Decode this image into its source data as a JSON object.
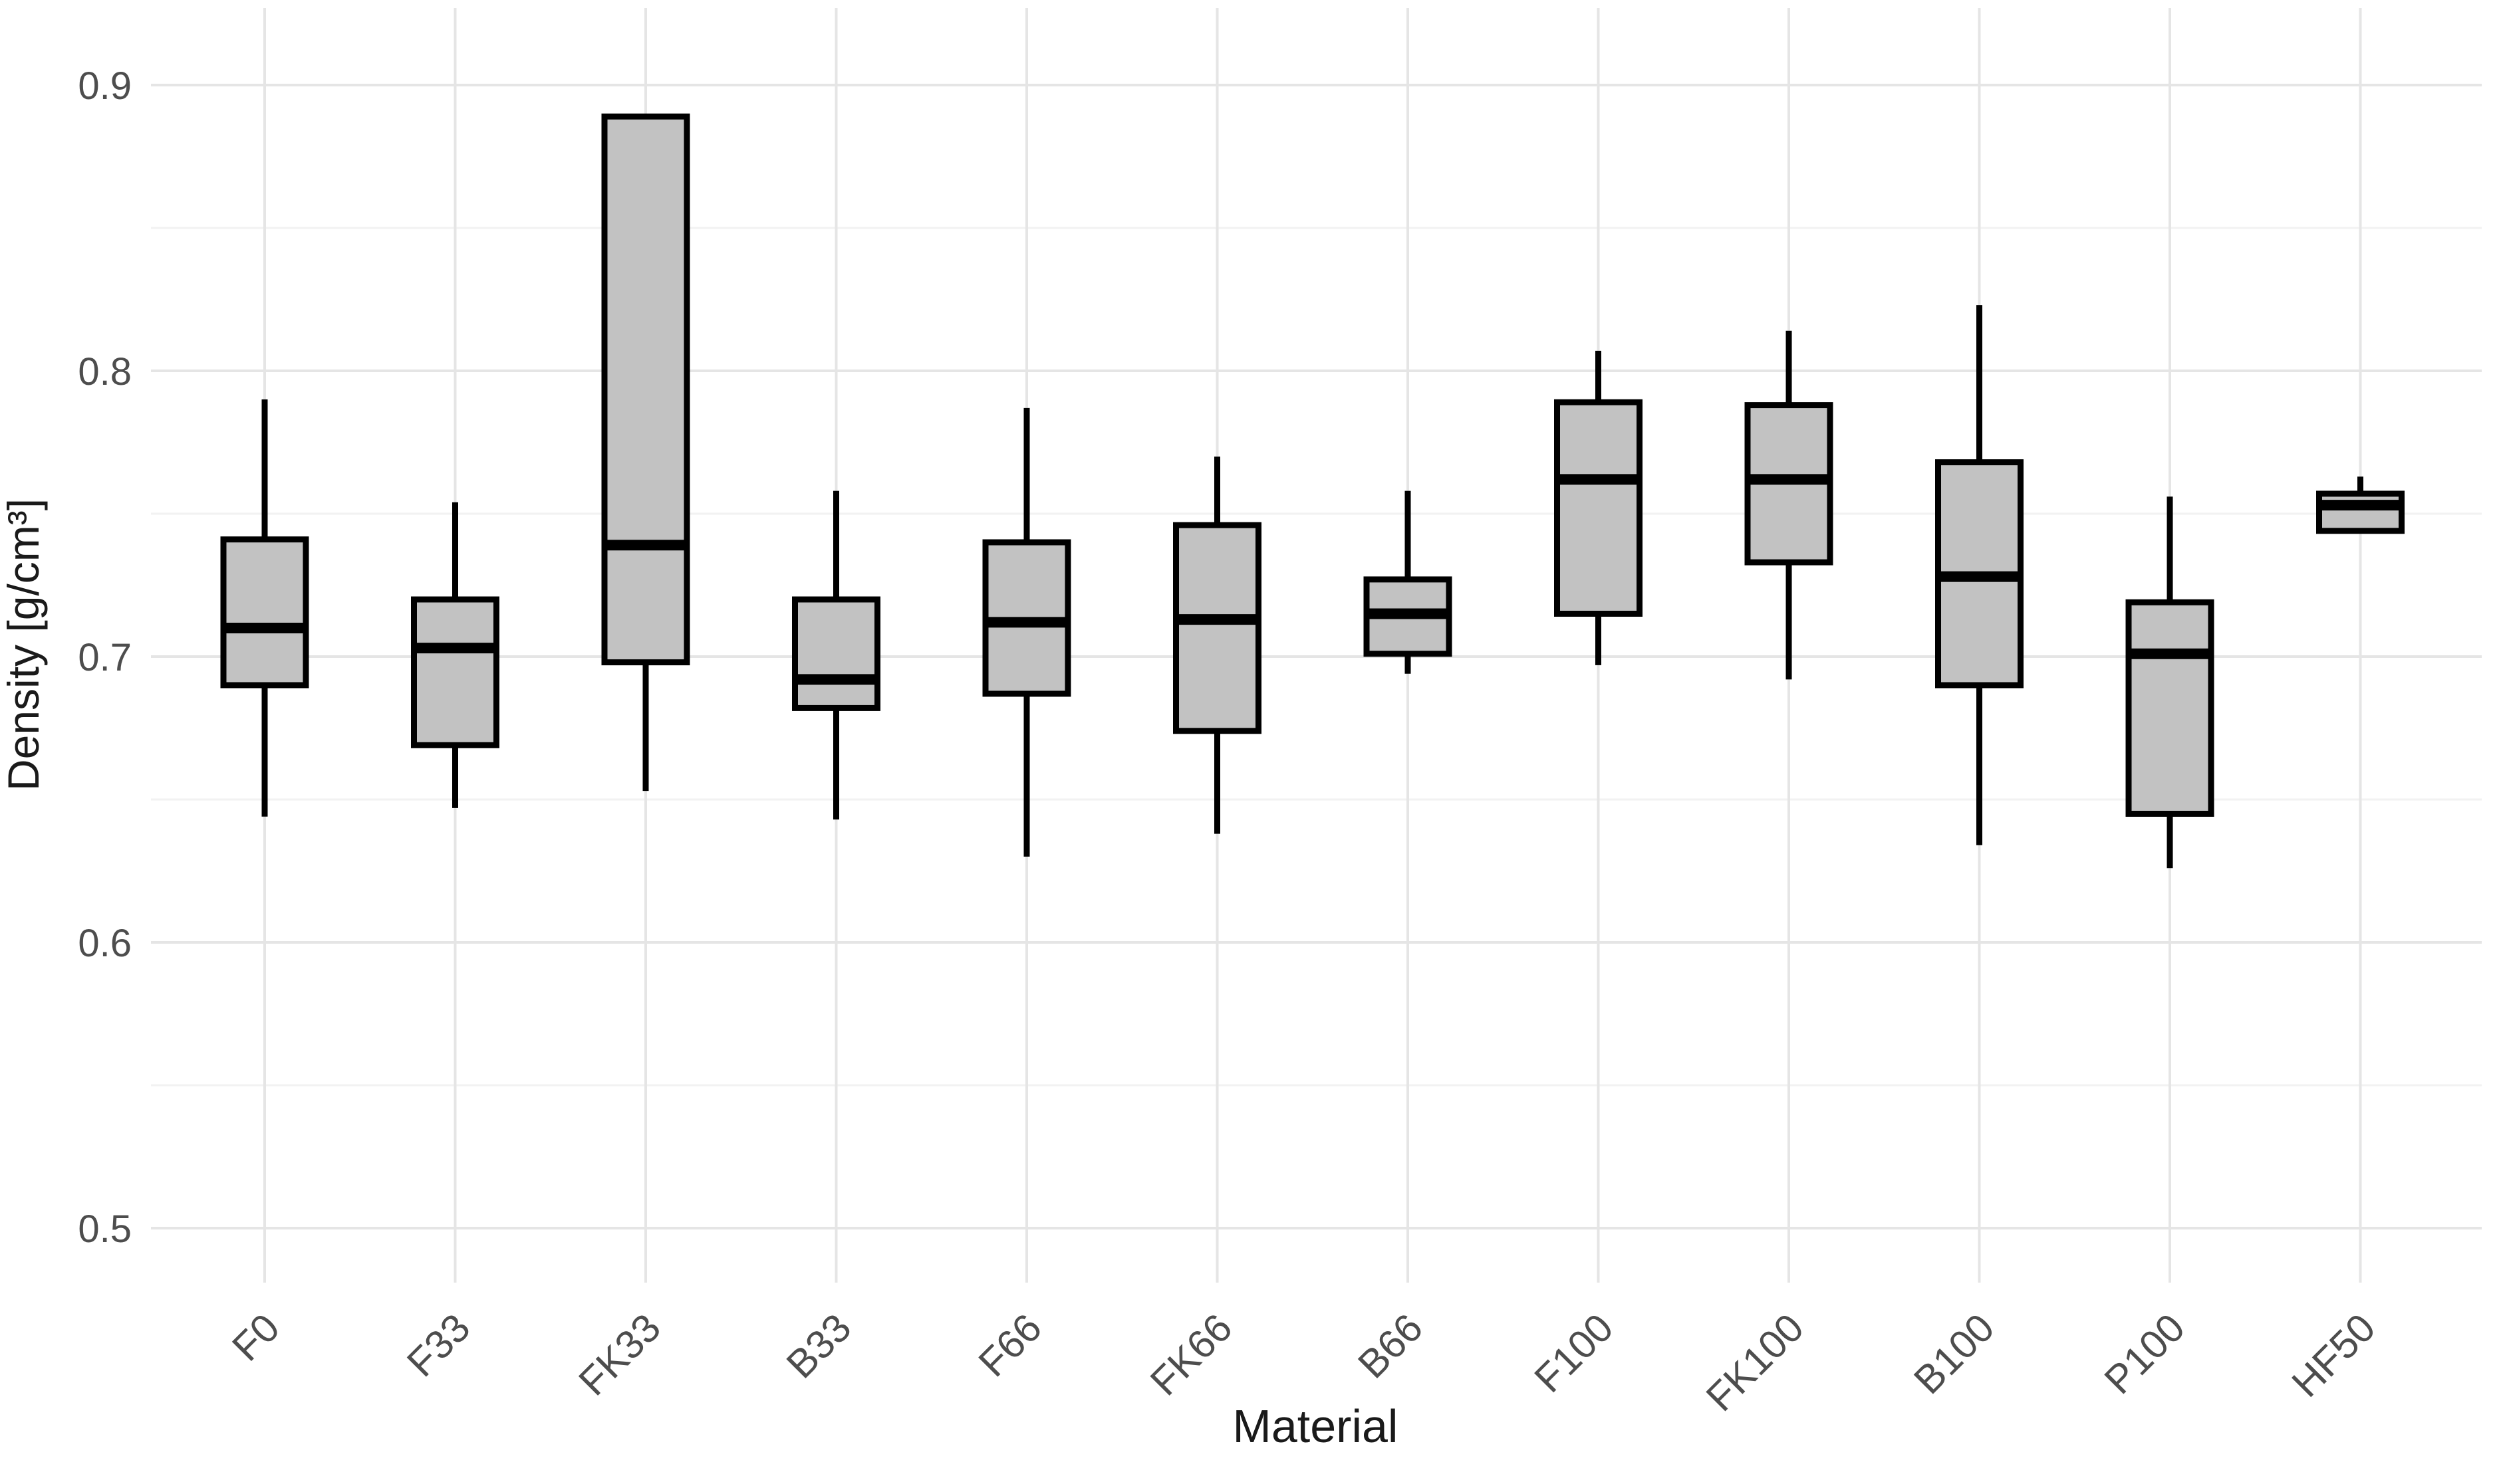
{
  "chart_data": {
    "type": "boxplot",
    "title": "",
    "xlabel": "Material",
    "ylabel": "Density [g/cm³]",
    "ylim": [
      0.479,
      0.926
    ],
    "yticks": [
      0.5,
      0.6,
      0.7,
      0.8,
      0.9
    ],
    "ytick_labels": [
      "0.5",
      "0.6",
      "0.7",
      "0.8",
      "0.9"
    ],
    "yticks_minor": [
      0.55,
      0.65,
      0.75,
      0.85
    ],
    "grid": "on",
    "legend": "none",
    "categories": [
      "F0",
      "F33",
      "FK33",
      "B33",
      "F66",
      "FK66",
      "B66",
      "F100",
      "FK100",
      "B100",
      "P100",
      "HF50"
    ],
    "series": [
      {
        "name": "F0",
        "min": 0.644,
        "q1": 0.69,
        "median": 0.71,
        "q3": 0.741,
        "max": 0.79
      },
      {
        "name": "F33",
        "min": 0.647,
        "q1": 0.669,
        "median": 0.703,
        "q3": 0.72,
        "max": 0.754
      },
      {
        "name": "FK33",
        "min": 0.653,
        "q1": 0.698,
        "median": 0.739,
        "q3": 0.889,
        "max": 0.889
      },
      {
        "name": "B33",
        "min": 0.643,
        "q1": 0.682,
        "median": 0.692,
        "q3": 0.72,
        "max": 0.758
      },
      {
        "name": "F66",
        "min": 0.63,
        "q1": 0.687,
        "median": 0.712,
        "q3": 0.74,
        "max": 0.787
      },
      {
        "name": "FK66",
        "min": 0.638,
        "q1": 0.674,
        "median": 0.713,
        "q3": 0.746,
        "max": 0.77
      },
      {
        "name": "B66",
        "min": 0.694,
        "q1": 0.701,
        "median": 0.715,
        "q3": 0.727,
        "max": 0.758
      },
      {
        "name": "F100",
        "min": 0.697,
        "q1": 0.715,
        "median": 0.762,
        "q3": 0.789,
        "max": 0.807
      },
      {
        "name": "FK100",
        "min": 0.692,
        "q1": 0.733,
        "median": 0.762,
        "q3": 0.788,
        "max": 0.814
      },
      {
        "name": "B100",
        "min": 0.634,
        "q1": 0.69,
        "median": 0.728,
        "q3": 0.768,
        "max": 0.823
      },
      {
        "name": "P100",
        "min": 0.626,
        "q1": 0.645,
        "median": 0.701,
        "q3": 0.719,
        "max": 0.756
      },
      {
        "name": "HF50",
        "min": 0.744,
        "q1": 0.744,
        "median": 0.753,
        "q3": 0.757,
        "max": 0.763
      }
    ]
  },
  "colors": {
    "background": "#ffffff",
    "box_fill": "#c2c2c2",
    "box_stroke": "#000000",
    "median_stroke": "#000000",
    "grid_major": "#e5e5e5",
    "grid_minor": "#f2f2f2",
    "tick_label": "#4d4d4d",
    "axis_title": "#1a1a1a"
  }
}
